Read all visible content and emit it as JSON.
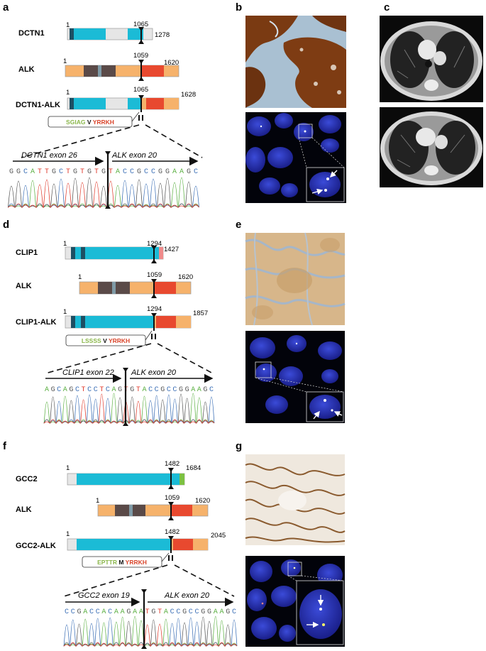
{
  "panels": {
    "a": {
      "letter": "a",
      "genes": [
        {
          "label": "DCTN1",
          "start": "1",
          "bp": "1065",
          "end": "1278"
        },
        {
          "label": "ALK",
          "start": "1",
          "bp": "1059",
          "end": "1620"
        },
        {
          "label": "DCTN1-ALK",
          "start": "1",
          "bp": "1065",
          "end": "1628"
        }
      ],
      "junction": {
        "left": "SGIAG",
        "mid": "V",
        "right": "YRRKH"
      },
      "exon_left": "DCTN1 exon 26",
      "exon_right": "ALK exon 20",
      "sequence": "GGCATTGCTGTGTGTACCGCCGGAAGC"
    },
    "d": {
      "letter": "d",
      "genes": [
        {
          "label": "CLIP1",
          "start": "1",
          "bp": "1294",
          "end": "1427"
        },
        {
          "label": "ALK",
          "start": "1",
          "bp": "1059",
          "end": "1620"
        },
        {
          "label": "CLIP1-ALK",
          "start": "1",
          "bp": "1294",
          "end": "1857"
        }
      ],
      "junction": {
        "left": "LSSSS",
        "mid": "V",
        "right": "YRRKH"
      },
      "exon_left": "CLIP1 exon 22",
      "exon_right": "ALK exon 20",
      "sequence": "AGCAGCTCCTCAGTGTACCGCCGGAAGC"
    },
    "f": {
      "letter": "f",
      "genes": [
        {
          "label": "GCC2",
          "start": "1",
          "bp": "1482",
          "end": "1684"
        },
        {
          "label": "ALK",
          "start": "1",
          "bp": "1059",
          "end": "1620"
        },
        {
          "label": "GCC2-ALK",
          "start": "1",
          "bp": "1482",
          "end": "2045"
        }
      ],
      "junction": {
        "left": "EPTTR",
        "mid": "M",
        "right": "YRRKH"
      },
      "exon_left": "GCC2 exon 19",
      "exon_right": "ALK exon 20",
      "sequence": "CCGACCACAAGAATGTACCGCCGGAAGC"
    },
    "b": {
      "letter": "b"
    },
    "c": {
      "letter": "c"
    },
    "e": {
      "letter": "e"
    },
    "g": {
      "letter": "g"
    }
  },
  "colors": {
    "cyan": "#1bbbd6",
    "dark_teal": "#1d4f63",
    "orange": "#f6b26b",
    "brown": "#5a4a48",
    "grey_blue": "#7f9aa6",
    "red": "#e8492f",
    "light_grey": "#e6e6e6",
    "pink": "#f08a8a",
    "green": "#7cc142",
    "aa_green": "#8ab64a",
    "aa_red": "#d9452b",
    "base_A": "#5cb043",
    "base_C": "#3b6fb6",
    "base_G": "#555555",
    "base_T": "#e0392b"
  }
}
